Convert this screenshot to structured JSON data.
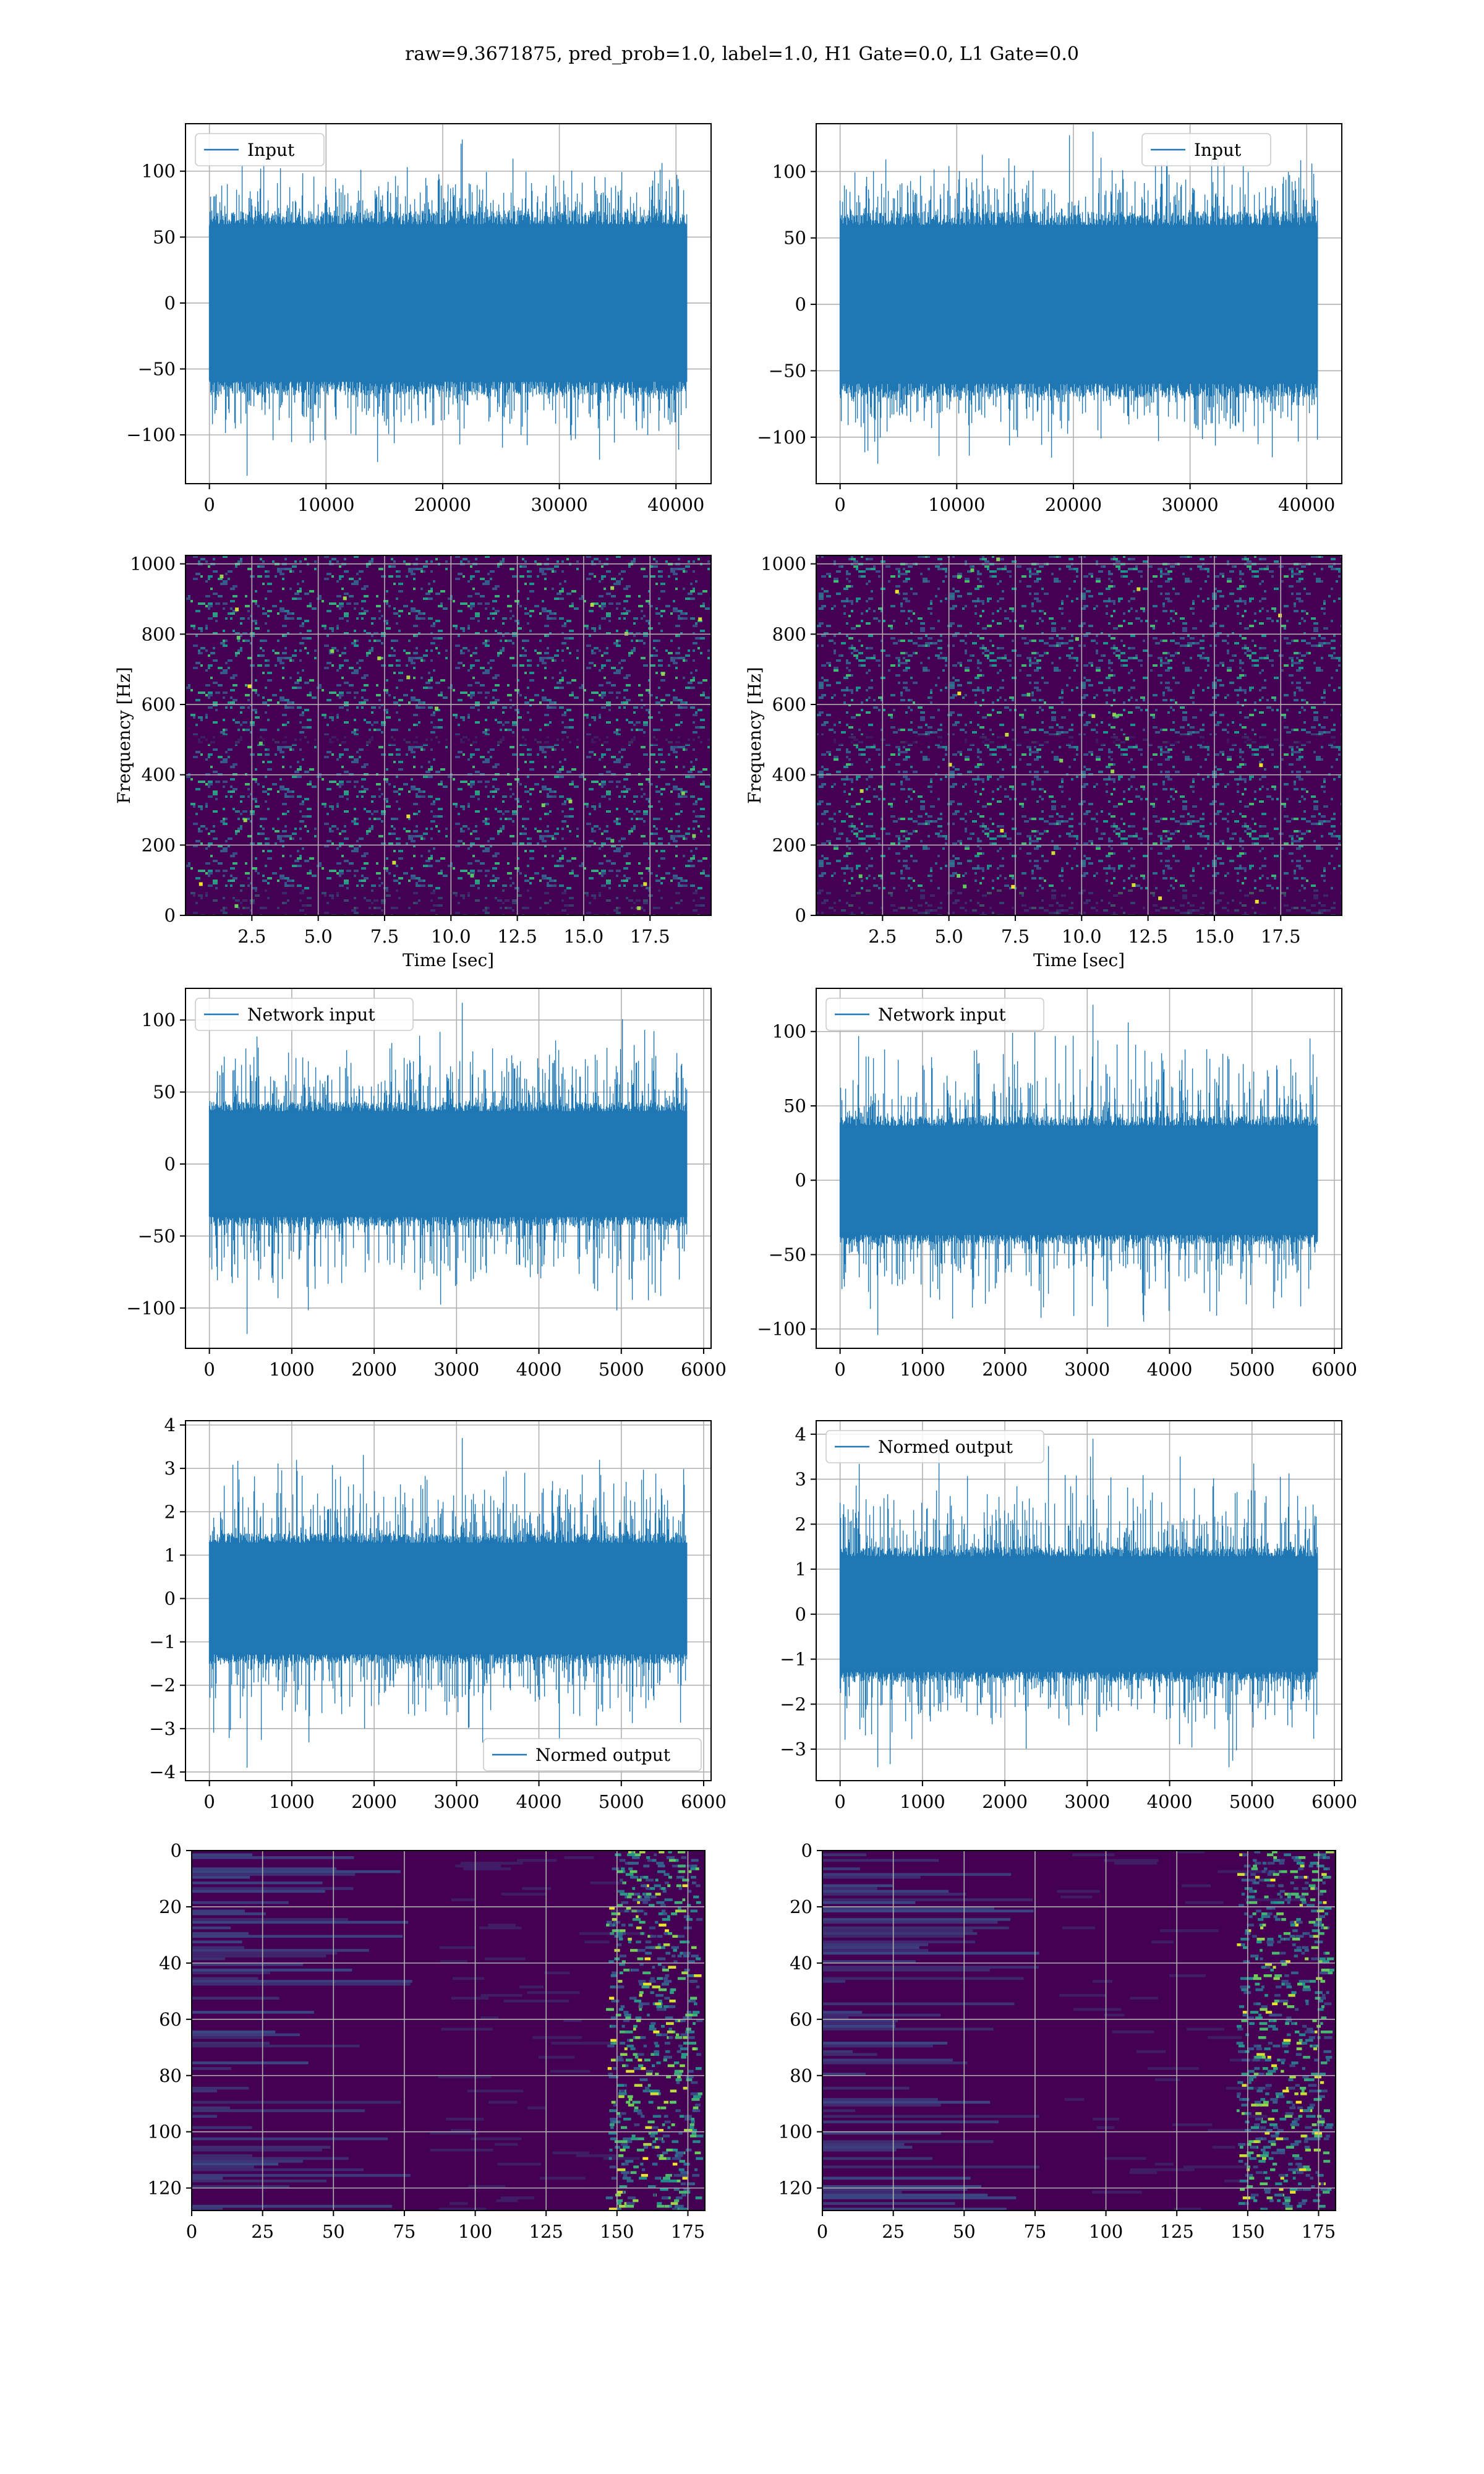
{
  "figure": {
    "title": "raw=9.3671875, pred_prob=1.0, label=1.0, H1 Gate=0.0, L1 Gate=0.0"
  },
  "colors": {
    "series": "#1f77b4",
    "grid": "#b0b0b0",
    "viridis_dark": "#440154",
    "viridis_blue": "#3b528b",
    "viridis_teal": "#21918c",
    "viridis_green": "#5ec962",
    "viridis_yellow": "#fde725"
  },
  "chart_data": [
    {
      "id": "input-h1",
      "type": "line",
      "title": "",
      "xlabel": "",
      "ylabel": "",
      "xlim": [
        -2048,
        43008
      ],
      "ylim": [
        -137,
        136
      ],
      "xticks": [
        0,
        10000,
        20000,
        30000,
        40000
      ],
      "yticks": [
        -100,
        -50,
        0,
        50,
        100
      ],
      "series": [
        {
          "name": "Input",
          "n_points": 40960,
          "band": [
            -65,
            65
          ],
          "peak_max": 124,
          "peak_min": -131
        }
      ],
      "legend": "upper left",
      "grid": true
    },
    {
      "id": "input-l1",
      "type": "line",
      "title": "",
      "xlabel": "",
      "ylabel": "",
      "xlim": [
        -2048,
        43008
      ],
      "ylim": [
        -135,
        136
      ],
      "xticks": [
        0,
        10000,
        20000,
        30000,
        40000
      ],
      "yticks": [
        -100,
        -50,
        0,
        50,
        100
      ],
      "series": [
        {
          "name": "Input",
          "n_points": 40960,
          "band": [
            -65,
            65
          ],
          "peak_max": 130,
          "peak_min": -120
        }
      ],
      "legend": "upper center",
      "grid": true
    },
    {
      "id": "spectrogram-h1",
      "type": "heatmap",
      "title": "",
      "xlabel": "Time [sec]",
      "ylabel": "Frequency [Hz]",
      "xlim": [
        0,
        19.8
      ],
      "ylim": [
        0,
        1024
      ],
      "xticks": [
        2.5,
        5.0,
        7.5,
        10.0,
        12.5,
        15.0,
        17.5
      ],
      "yticks": [
        0,
        200,
        400,
        600,
        800,
        1000
      ],
      "colormap": "viridis",
      "grid": true
    },
    {
      "id": "spectrogram-l1",
      "type": "heatmap",
      "title": "",
      "xlabel": "Time [sec]",
      "ylabel": "Frequency [Hz]",
      "xlim": [
        0,
        19.8
      ],
      "ylim": [
        0,
        1024
      ],
      "xticks": [
        2.5,
        5.0,
        7.5,
        10.0,
        12.5,
        15.0,
        17.5
      ],
      "yticks": [
        0,
        200,
        400,
        600,
        800,
        1000
      ],
      "colormap": "viridis",
      "grid": true
    },
    {
      "id": "network-input-h1",
      "type": "line",
      "title": "",
      "xlabel": "",
      "ylabel": "",
      "xlim": [
        -290,
        6090
      ],
      "ylim": [
        -128,
        122
      ],
      "xticks": [
        0,
        1000,
        2000,
        3000,
        4000,
        5000,
        6000
      ],
      "yticks": [
        -100,
        -50,
        0,
        50,
        100
      ],
      "series": [
        {
          "name": "Network input",
          "n_points": 5800,
          "band": [
            -40,
            40
          ],
          "peak_max": 112,
          "peak_min": -118
        }
      ],
      "legend": "upper left",
      "grid": true
    },
    {
      "id": "network-input-l1",
      "type": "line",
      "title": "",
      "xlabel": "",
      "ylabel": "",
      "xlim": [
        -290,
        6090
      ],
      "ylim": [
        -113,
        129
      ],
      "xticks": [
        0,
        1000,
        2000,
        3000,
        4000,
        5000,
        6000
      ],
      "yticks": [
        -100,
        -50,
        0,
        50,
        100
      ],
      "series": [
        {
          "name": "Network input",
          "n_points": 5800,
          "band": [
            -40,
            40
          ],
          "peak_max": 118,
          "peak_min": -104
        }
      ],
      "legend": "upper left",
      "grid": true
    },
    {
      "id": "normed-output-h1",
      "type": "line",
      "title": "",
      "xlabel": "",
      "ylabel": "",
      "xlim": [
        -290,
        6090
      ],
      "ylim": [
        -4.2,
        4.1
      ],
      "xticks": [
        0,
        1000,
        2000,
        3000,
        4000,
        5000,
        6000
      ],
      "yticks": [
        -4,
        -3,
        -2,
        -1,
        0,
        1,
        2,
        3,
        4
      ],
      "series": [
        {
          "name": "Normed output",
          "n_points": 5800,
          "band": [
            -1.4,
            1.4
          ],
          "peak_max": 3.7,
          "peak_min": -3.9
        }
      ],
      "legend": "lower right",
      "grid": true
    },
    {
      "id": "normed-output-l1",
      "type": "line",
      "title": "",
      "xlabel": "",
      "ylabel": "",
      "xlim": [
        -290,
        6090
      ],
      "ylim": [
        -3.7,
        4.3
      ],
      "xticks": [
        0,
        1000,
        2000,
        3000,
        4000,
        5000,
        6000
      ],
      "yticks": [
        -3,
        -2,
        -1,
        0,
        1,
        2,
        3,
        4
      ],
      "series": [
        {
          "name": "Normed output",
          "n_points": 5800,
          "band": [
            -1.4,
            1.4
          ],
          "peak_max": 3.9,
          "peak_min": -3.4
        }
      ],
      "legend": "upper left",
      "grid": true
    },
    {
      "id": "feature-map-h1",
      "type": "heatmap",
      "title": "",
      "xlabel": "",
      "ylabel": "",
      "xlim": [
        0,
        181
      ],
      "ylim": [
        128,
        0
      ],
      "xticks": [
        0,
        25,
        50,
        75,
        100,
        125,
        150,
        175
      ],
      "yticks": [
        0,
        20,
        40,
        60,
        80,
        100,
        120
      ],
      "colormap": "viridis",
      "grid": true
    },
    {
      "id": "feature-map-l1",
      "type": "heatmap",
      "title": "",
      "xlabel": "",
      "ylabel": "",
      "xlim": [
        0,
        181
      ],
      "ylim": [
        128,
        0
      ],
      "xticks": [
        0,
        25,
        50,
        75,
        100,
        125,
        150,
        175
      ],
      "yticks": [
        0,
        20,
        40,
        60,
        80,
        100,
        120
      ],
      "colormap": "viridis",
      "grid": true
    }
  ]
}
